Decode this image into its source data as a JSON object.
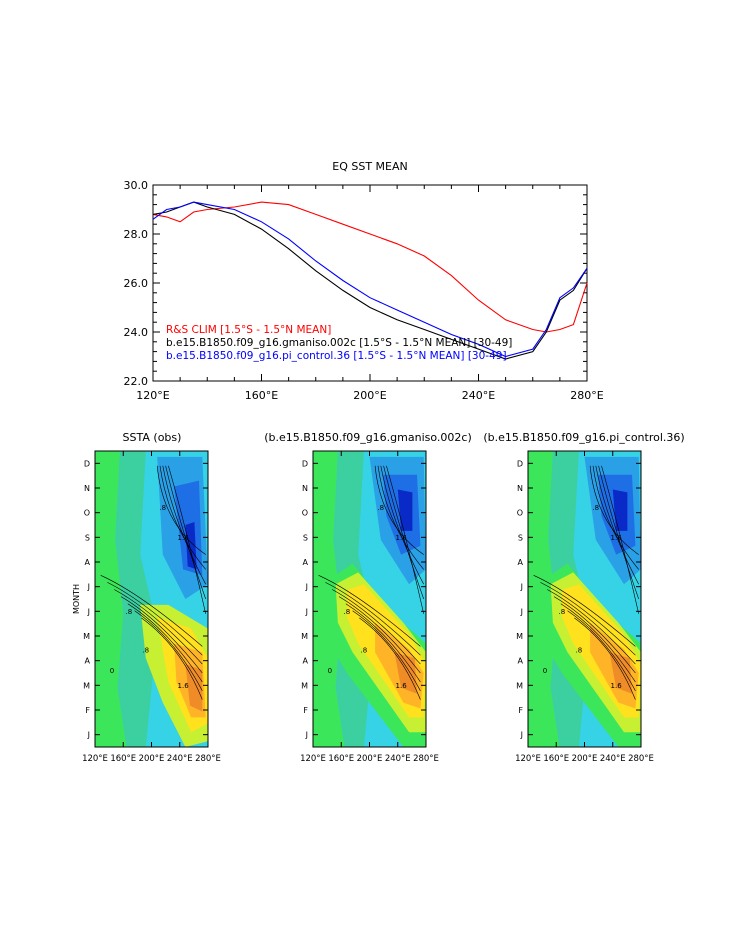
{
  "line_chart": {
    "title": "EQ SST MEAN",
    "x_ticks": [
      "120°E",
      "160°E",
      "200°E",
      "240°E",
      "280°E"
    ],
    "y_ticks": [
      "22.0",
      "24.0",
      "26.0",
      "28.0",
      "30.0"
    ],
    "legend": [
      {
        "label": "R&S CLIM [1.5°S - 1.5°N MEAN]",
        "color": "#ff0000"
      },
      {
        "label": "b.e15.B1850.f09_g16.gmaniso.002c [1.5°S - 1.5°N MEAN] [30-49]",
        "color": "#000000"
      },
      {
        "label": "b.e15.B1850.f09_g16.pi_control.36 [1.5°S - 1.5°N MEAN] [30-49]",
        "color": "#0000ff"
      }
    ]
  },
  "hovmoller": {
    "panels": [
      {
        "title": "SSTA (obs)"
      },
      {
        "title": "(b.e15.B1850.f09_g16.gmaniso.002c)"
      },
      {
        "title": "(b.e15.B1850.f09_g16.pi_control.36)"
      }
    ],
    "ylabel": "MONTH",
    "month_ticks": [
      "J",
      "F",
      "M",
      "A",
      "M",
      "J",
      "J",
      "A",
      "S",
      "O",
      "N",
      "D"
    ],
    "x_ticks": [
      "120°E",
      "160°E",
      "200°E",
      "240°E",
      "280°E"
    ],
    "colors": {
      "strong_neg": "#0a2ac8",
      "neg3": "#1e6ee6",
      "neg2": "#2aa0e6",
      "neg1": "#36d2e6",
      "zero": "#3ccfa0",
      "pos1": "#3ce65a",
      "pos2": "#c8f032",
      "pos3": "#ffe11e",
      "pos4": "#ffb428",
      "pos5": "#f08c28"
    },
    "contour_labels": [
      ".8",
      "1.6",
      "0",
      ".8",
      "1.6",
      ".8"
    ]
  },
  "chart_data": [
    {
      "type": "line",
      "title": "EQ SST MEAN",
      "xlabel": "",
      "ylabel": "",
      "xlim": [
        120,
        280
      ],
      "ylim": [
        22,
        30
      ],
      "x": [
        120,
        125,
        130,
        135,
        140,
        150,
        160,
        170,
        180,
        190,
        200,
        210,
        220,
        230,
        240,
        250,
        260,
        265,
        270,
        275,
        280
      ],
      "series": [
        {
          "name": "R&S CLIM [1.5°S - 1.5°N MEAN]",
          "color": "#ff0000",
          "values": [
            28.8,
            28.7,
            28.5,
            28.9,
            29.0,
            29.1,
            29.3,
            29.2,
            28.8,
            28.4,
            28.0,
            27.6,
            27.1,
            26.3,
            25.3,
            24.5,
            24.1,
            24.0,
            24.1,
            24.3,
            26.0
          ]
        },
        {
          "name": "b.e15.B1850.f09_g16.gmaniso.002c [1.5°S - 1.5°N MEAN] [30-49]",
          "color": "#000000",
          "values": [
            28.8,
            28.9,
            29.1,
            29.3,
            29.1,
            28.8,
            28.2,
            27.4,
            26.5,
            25.7,
            25.0,
            24.5,
            24.1,
            23.7,
            23.3,
            22.9,
            23.2,
            24.0,
            25.3,
            25.7,
            26.6
          ]
        },
        {
          "name": "b.e15.B1850.f09_g16.pi_control.36 [1.5°S - 1.5°N MEAN] [30-49]",
          "color": "#0000ff",
          "values": [
            28.6,
            29.0,
            29.1,
            29.3,
            29.2,
            29.0,
            28.5,
            27.8,
            26.9,
            26.1,
            25.4,
            24.9,
            24.4,
            23.9,
            23.5,
            23.0,
            23.3,
            24.1,
            25.4,
            25.8,
            26.6
          ]
        }
      ]
    },
    {
      "type": "heatmap",
      "title": "SSTA (obs)",
      "ylabel": "MONTH",
      "x_ticks": [
        "120°E",
        "160°E",
        "200°E",
        "240°E",
        "280°E"
      ],
      "y_ticks": [
        "J",
        "F",
        "M",
        "A",
        "M",
        "J",
        "J",
        "A",
        "S",
        "O",
        "N",
        "D"
      ]
    },
    {
      "type": "heatmap",
      "title": "(b.e15.B1850.f09_g16.gmaniso.002c)",
      "x_ticks": [
        "120°E",
        "160°E",
        "200°E",
        "240°E",
        "280°E"
      ],
      "y_ticks": [
        "J",
        "F",
        "M",
        "A",
        "M",
        "J",
        "J",
        "A",
        "S",
        "O",
        "N",
        "D"
      ]
    },
    {
      "type": "heatmap",
      "title": "(b.e15.B1850.f09_g16.pi_control.36)",
      "x_ticks": [
        "120°E",
        "160°E",
        "200°E",
        "240°E",
        "280°E"
      ],
      "y_ticks": [
        "J",
        "F",
        "M",
        "A",
        "M",
        "J",
        "J",
        "A",
        "S",
        "O",
        "N",
        "D"
      ]
    }
  ]
}
